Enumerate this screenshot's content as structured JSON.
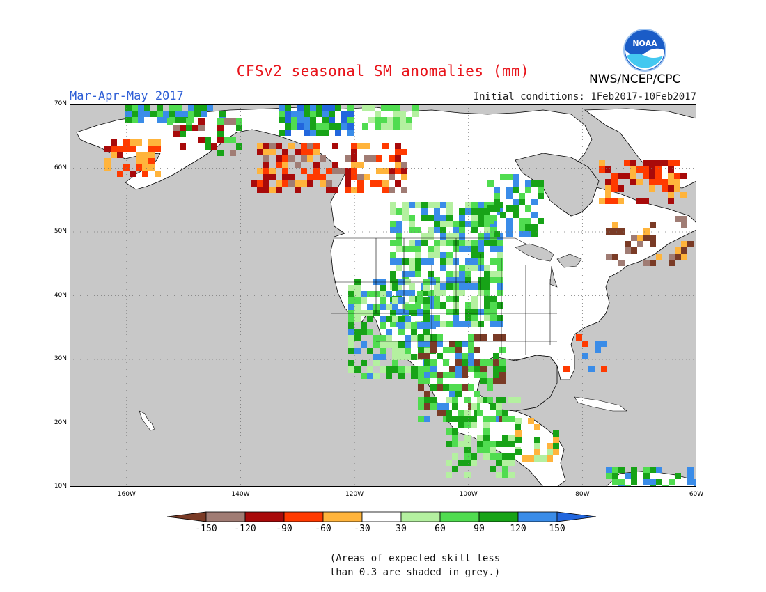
{
  "header": {
    "title": "CFSv2 seasonal SM anomalies (mm)",
    "season": "Mar-Apr-May 2017",
    "initial_conditions": "Initial conditions: 1Feb2017-10Feb2017",
    "agency": "NWS/NCEP/CPC",
    "logo_text": "NOAA"
  },
  "map": {
    "lat_labels": [
      "70N",
      "60N",
      "50N",
      "40N",
      "30N",
      "20N",
      "10N"
    ],
    "lon_labels": [
      "160W",
      "140W",
      "120W",
      "100W",
      "80W",
      "60W"
    ],
    "lat_range": [
      10,
      70
    ],
    "lon_range": [
      -170,
      -60
    ],
    "land_color": "#ffffff",
    "masked_color": "#c8c8c8",
    "grid": true
  },
  "legend": {
    "labels": [
      "-150",
      "-120",
      "-90",
      "-60",
      "-30",
      "30",
      "60",
      "90",
      "120",
      "150"
    ],
    "colors": [
      "#7a3b26",
      "#a07c74",
      "#a80a0a",
      "#ff3a00",
      "#ffb43c",
      "#ffffff",
      "#b4f0a0",
      "#50dc50",
      "#17a317",
      "#3a8ce8",
      "#2266dd"
    ]
  },
  "note": {
    "line1": "(Areas of expected skill less",
    "line2": "than 0.3 are shaded in grey.)"
  }
}
